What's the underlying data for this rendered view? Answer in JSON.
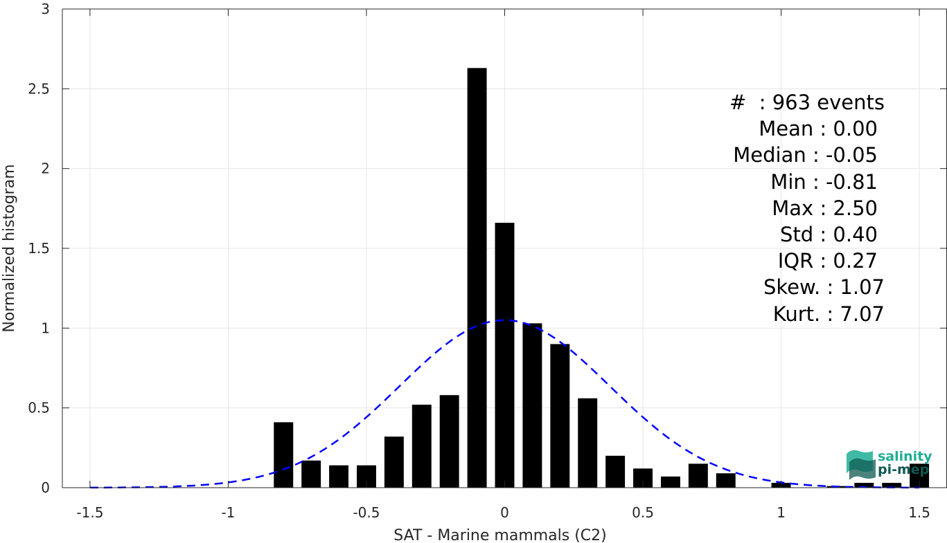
{
  "chart_data": {
    "type": "bar",
    "xlabel": "SAT - Marine mammals (C2)",
    "ylabel": "Normalized histogram",
    "xlim": [
      -1.6,
      1.6
    ],
    "ylim": [
      0,
      3
    ],
    "xticks": [
      -1.5,
      -1,
      -0.5,
      0,
      0.5,
      1,
      1.5
    ],
    "xtick_labels": [
      "-1.5",
      "-1",
      "-0.5",
      "0",
      "0.5",
      "1",
      "1.5"
    ],
    "yticks": [
      0,
      0.5,
      1,
      1.5,
      2,
      2.5,
      3
    ],
    "ytick_labels": [
      "0",
      "0.5",
      "1",
      "1.5",
      "2",
      "2.5",
      "3"
    ],
    "grid": true,
    "bar_width": 0.07,
    "bars": [
      {
        "x": -0.8,
        "y": 0.41
      },
      {
        "x": -0.7,
        "y": 0.17
      },
      {
        "x": -0.6,
        "y": 0.14
      },
      {
        "x": -0.5,
        "y": 0.14
      },
      {
        "x": -0.4,
        "y": 0.32
      },
      {
        "x": -0.3,
        "y": 0.52
      },
      {
        "x": -0.2,
        "y": 0.58
      },
      {
        "x": -0.1,
        "y": 2.63
      },
      {
        "x": 0.0,
        "y": 1.66
      },
      {
        "x": 0.1,
        "y": 1.03
      },
      {
        "x": 0.2,
        "y": 0.9
      },
      {
        "x": 0.3,
        "y": 0.56
      },
      {
        "x": 0.4,
        "y": 0.2
      },
      {
        "x": 0.5,
        "y": 0.12
      },
      {
        "x": 0.6,
        "y": 0.07
      },
      {
        "x": 0.7,
        "y": 0.15
      },
      {
        "x": 0.8,
        "y": 0.09
      },
      {
        "x": 1.0,
        "y": 0.03
      },
      {
        "x": 1.2,
        "y": 0.01
      },
      {
        "x": 1.3,
        "y": 0.03
      },
      {
        "x": 1.4,
        "y": 0.03
      },
      {
        "x": 1.5,
        "y": 0.15
      }
    ],
    "series": [
      {
        "type": "normal-fit",
        "mean": 0.0,
        "std": 0.38,
        "style": "dashed",
        "color": "#0000ff"
      }
    ],
    "bar_color": "#000000",
    "annotations": [
      "#  : 963 events",
      "Mean : 0.00",
      "Median : -0.05",
      "Min : -0.81",
      "Max : 2.50",
      "Std : 0.40",
      "IQR : 0.27",
      "Skew. : 1.07",
      "Kurt. : 7.07"
    ]
  },
  "logo": {
    "line1": "salinity",
    "line2": "pi-mep",
    "color1": "#1fae95",
    "color2": "#0f5a52"
  }
}
